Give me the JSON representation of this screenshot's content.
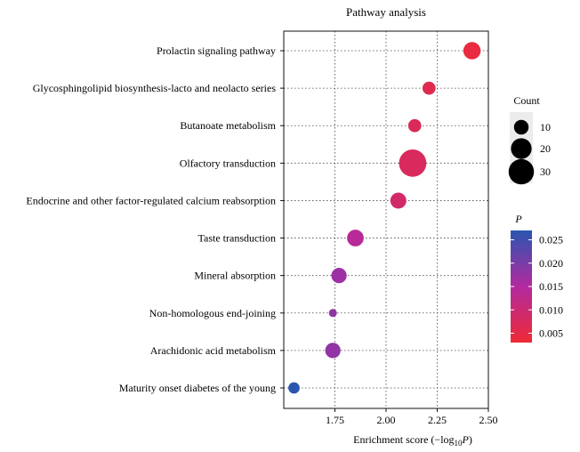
{
  "chart_data": {
    "type": "scatter",
    "title": "Pathway analysis",
    "xlabel": {
      "main": "Enrichment score (−log",
      "sub": "10",
      "var": "P",
      "close": ")"
    },
    "xlim": [
      1.5,
      2.5
    ],
    "x_ticks": [
      1.75,
      2.0,
      2.25,
      2.5
    ],
    "x_tick_labels": [
      "1.75",
      "2.00",
      "2.25",
      "2.50"
    ],
    "grid": true,
    "categories": [
      "Prolactin signaling pathway",
      "Glycosphingolipid biosynthesis-lacto and neolacto series",
      "Butanoate metabolism",
      "Olfactory transduction",
      "Endocrine and other factor-regulated calcium reabsorption",
      "Taste transduction",
      "Mineral absorption",
      "Non-homologous end-joining",
      "Arachidonic acid metabolism",
      "Maturity onset diabetes of the young"
    ],
    "points": [
      {
        "pathway": "Prolactin signaling pathway",
        "enrichment": 2.42,
        "count": 14,
        "p": 0.004
      },
      {
        "pathway": "Glycosphingolipid biosynthesis-lacto and neolacto series",
        "enrichment": 2.21,
        "count": 8,
        "p": 0.006
      },
      {
        "pathway": "Butanoate metabolism",
        "enrichment": 2.14,
        "count": 8,
        "p": 0.007
      },
      {
        "pathway": "Olfactory transduction",
        "enrichment": 2.13,
        "count": 35,
        "p": 0.0075
      },
      {
        "pathway": "Endocrine and other factor-regulated calcium reabsorption",
        "enrichment": 2.06,
        "count": 12,
        "p": 0.0087
      },
      {
        "pathway": "Taste transduction",
        "enrichment": 1.85,
        "count": 13,
        "p": 0.0141
      },
      {
        "pathway": "Mineral absorption",
        "enrichment": 1.77,
        "count": 11,
        "p": 0.017
      },
      {
        "pathway": "Non-homologous end-joining",
        "enrichment": 1.74,
        "count": 3,
        "p": 0.018
      },
      {
        "pathway": "Arachidonic acid metabolism",
        "enrichment": 1.74,
        "count": 11,
        "p": 0.018
      },
      {
        "pathway": "Maturity onset diabetes of the young",
        "enrichment": 1.55,
        "count": 6,
        "p": 0.027
      }
    ],
    "size_legend": {
      "title": "Count",
      "values": [
        10,
        20,
        30
      ]
    },
    "color_legend": {
      "title": "P",
      "range": [
        0.003,
        0.027
      ],
      "ticks": [
        0.005,
        0.01,
        0.015,
        0.02,
        0.025
      ],
      "tick_labels": [
        "0.005",
        "0.010",
        "0.015",
        "0.020",
        "0.025"
      ],
      "low_color": "#ee2a36",
      "mid_color": "#b22a9f",
      "high_color": "#2a56b0"
    }
  }
}
